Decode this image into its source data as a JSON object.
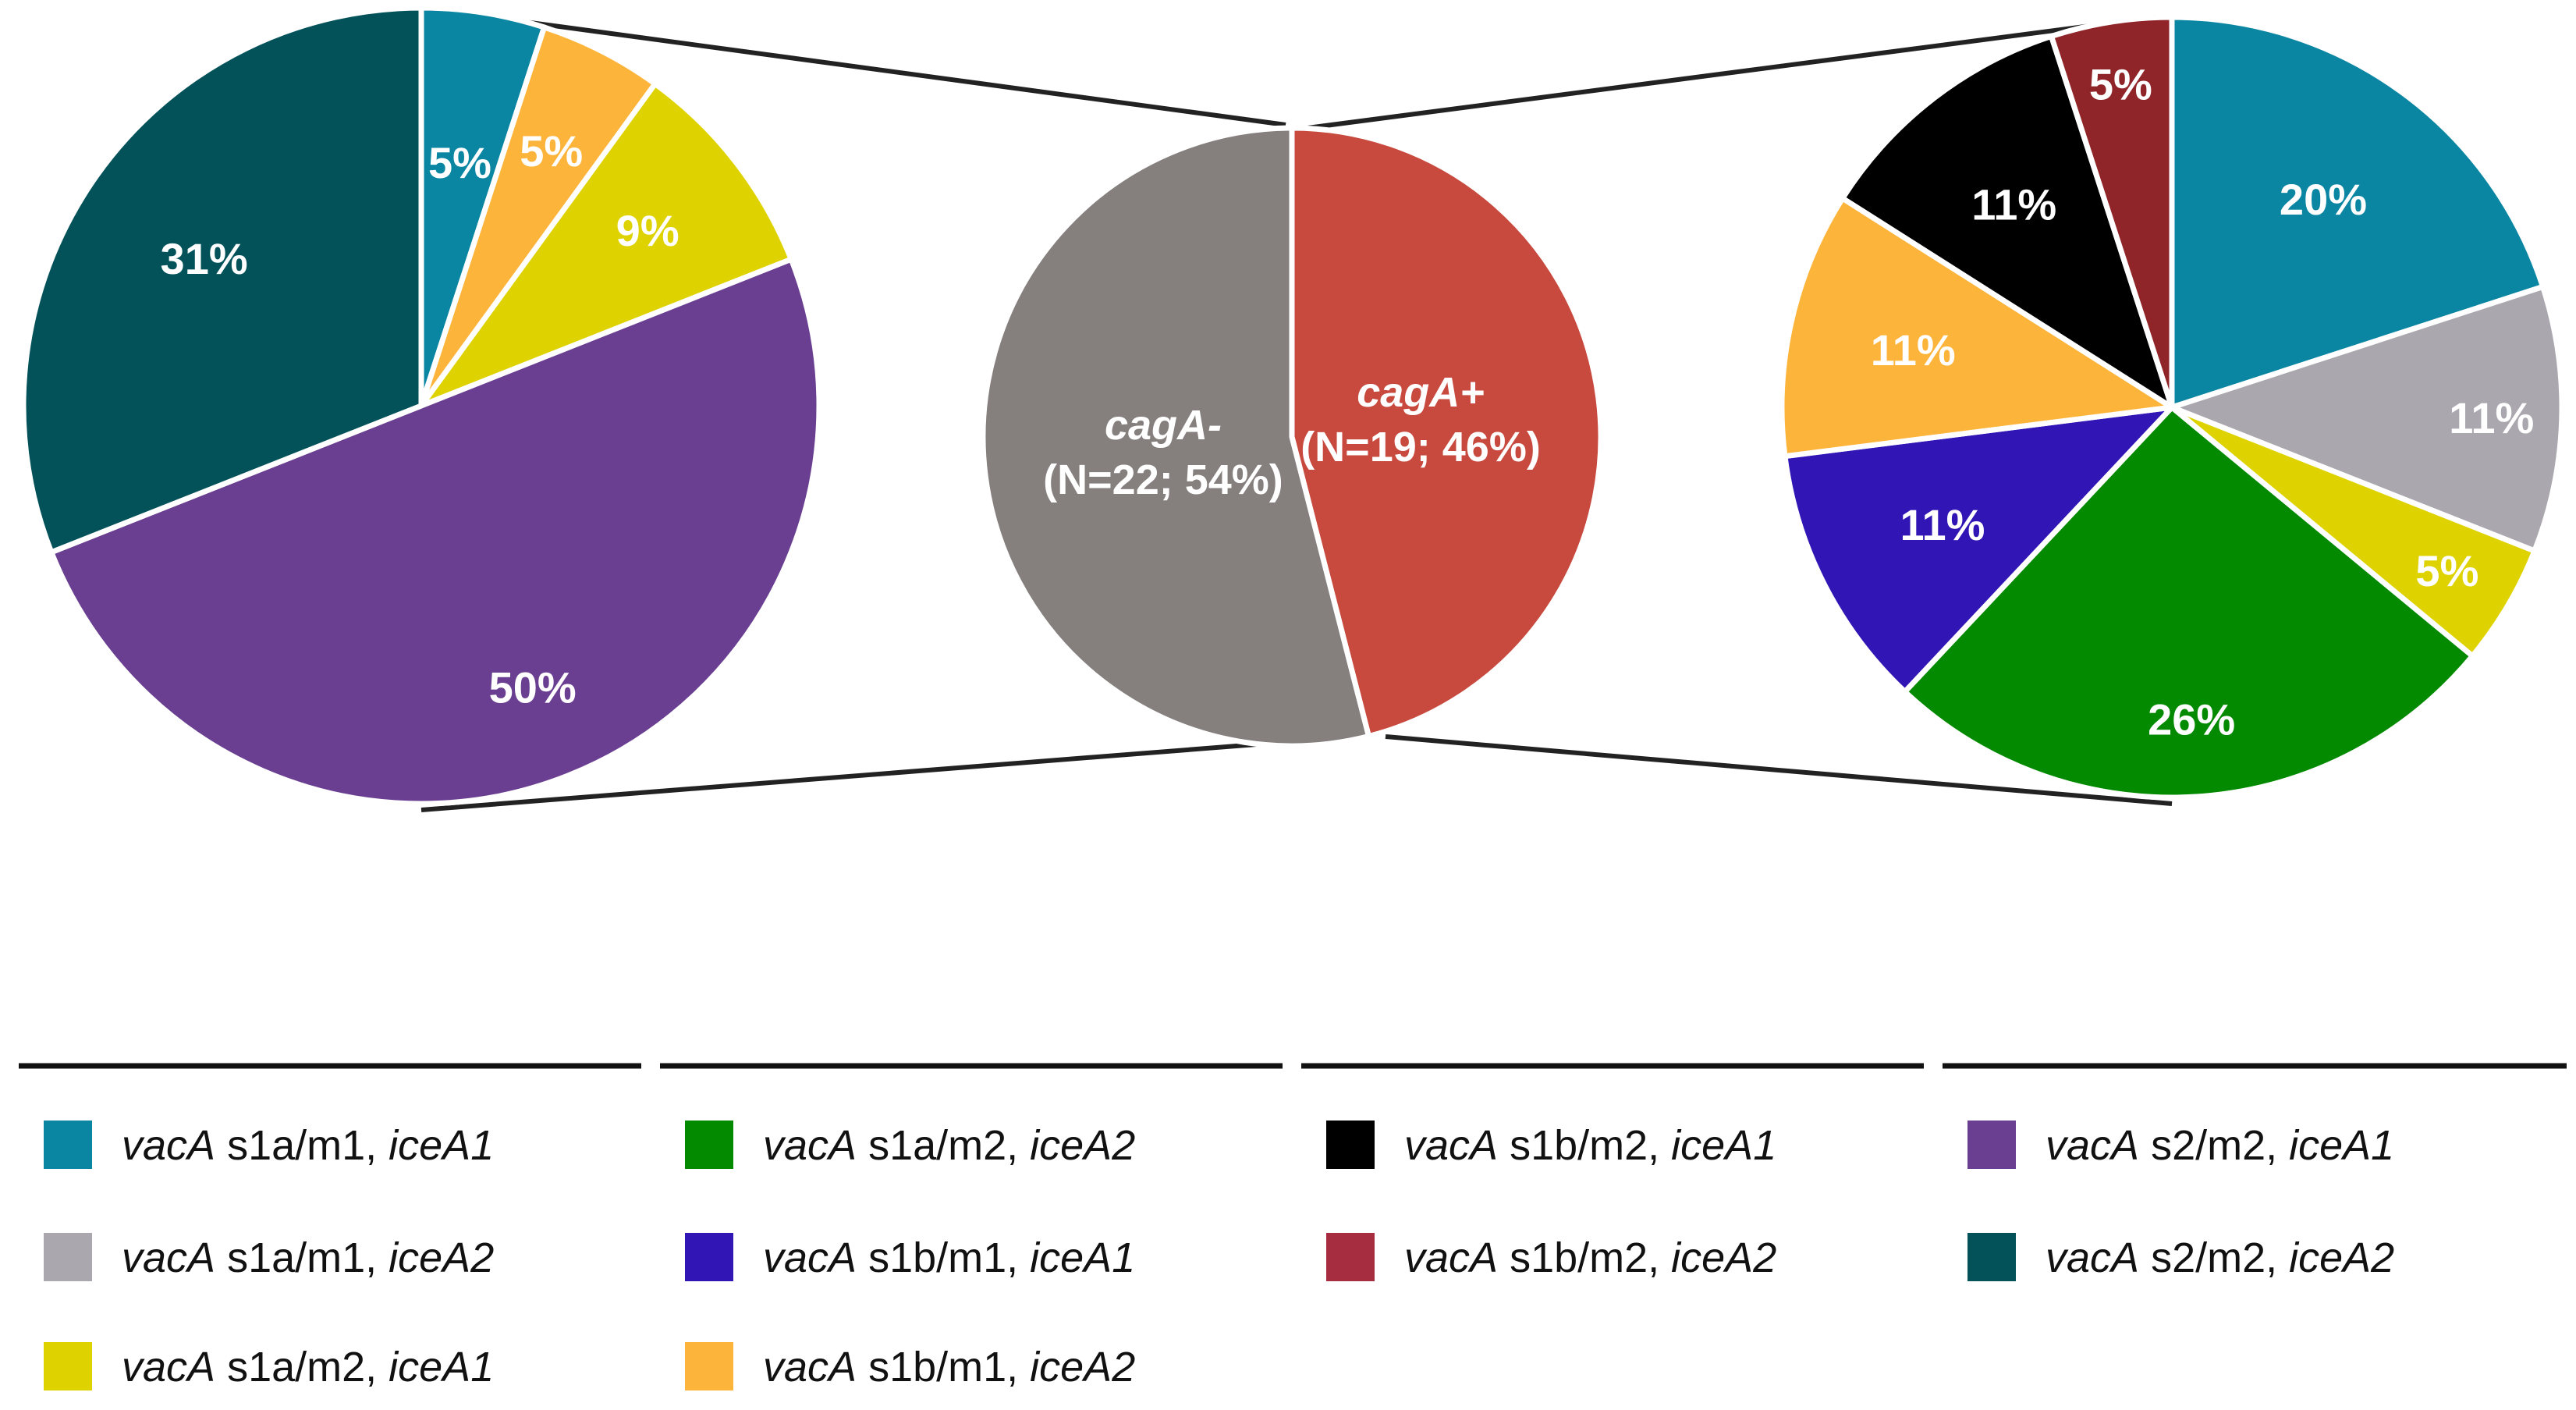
{
  "chart_data": [
    {
      "type": "pie",
      "name": "cagA-negative breakdown",
      "slices": [
        {
          "label": "vacA s1a/m1, iceA1",
          "value": 5,
          "text": "5%",
          "color": "#0a86a3"
        },
        {
          "label": "vacA s1b/m1, iceA2",
          "value": 5,
          "text": "5%",
          "color": "#fdb43a"
        },
        {
          "label": "vacA s1a/m2, iceA1",
          "value": 9,
          "text": "9%",
          "color": "#ded300"
        },
        {
          "label": "vacA s2/m2, iceA1",
          "value": 50,
          "text": "50%",
          "color": "#6a3f91"
        },
        {
          "label": "vacA s2/m2, iceA2",
          "value": 31,
          "text": "31%",
          "color": "#03525a"
        }
      ]
    },
    {
      "type": "pie",
      "name": "cagA status",
      "slices": [
        {
          "label": "cagA+",
          "value": 46,
          "line1": "cagA+",
          "line2": "(N=19; 46%)",
          "color": "#c84a3e"
        },
        {
          "label": "cagA-",
          "value": 54,
          "line1": "cagA-",
          "line2": "(N=22; 54%)",
          "color": "#857f7e"
        }
      ]
    },
    {
      "type": "pie",
      "name": "cagA-positive breakdown",
      "slices": [
        {
          "label": "vacA s1a/m1, iceA1",
          "value": 20,
          "text": "20%",
          "color": "#0a86a3"
        },
        {
          "label": "vacA s1a/m1, iceA2",
          "value": 11,
          "text": "11%",
          "color": "#aaa7ae"
        },
        {
          "label": "vacA s1a/m2, iceA1",
          "value": 5,
          "text": "5%",
          "color": "#ded300"
        },
        {
          "label": "vacA s1a/m2, iceA2",
          "value": 26,
          "text": "26%",
          "color": "#038a00"
        },
        {
          "label": "vacA s1b/m1, iceA1",
          "value": 11,
          "text": "11%",
          "color": "#3115b5"
        },
        {
          "label": "vacA s1b/m1, iceA2",
          "value": 11,
          "text": "11%",
          "color": "#fdb43a"
        },
        {
          "label": "vacA s1b/m2, iceA1",
          "value": 11,
          "text": "11%",
          "color": "#000000"
        },
        {
          "label": "vacA s1b/m2, iceA2",
          "value": 5,
          "text": "5%",
          "color": "#8f2528"
        }
      ]
    }
  ],
  "legend": [
    {
      "gene": "vacA",
      "genotype": " s1a/m1, ",
      "allele": "iceA1",
      "color": "#0a86a3"
    },
    {
      "gene": "vacA",
      "genotype": " s1a/m1, ",
      "allele": "iceA2",
      "color": "#aaa7ae"
    },
    {
      "gene": "vacA",
      "genotype": " s1a/m2, ",
      "allele": "iceA1",
      "color": "#ded300"
    },
    {
      "gene": "vacA",
      "genotype": " s1a/m2, ",
      "allele": "iceA2",
      "color": "#038a00"
    },
    {
      "gene": "vacA",
      "genotype": " s1b/m1, ",
      "allele": "iceA1",
      "color": "#3115b5"
    },
    {
      "gene": "vacA",
      "genotype": " s1b/m1, ",
      "allele": "iceA2",
      "color": "#fdb43a"
    },
    {
      "gene": "vacA",
      "genotype": " s1b/m2, ",
      "allele": "iceA1",
      "color": "#000000"
    },
    {
      "gene": "vacA",
      "genotype": " s1b/m2, ",
      "allele": "iceA2",
      "color": "#a62c3f"
    },
    {
      "gene": "vacA",
      "genotype": " s2/m2, ",
      "allele": "iceA1",
      "color": "#6a3f91"
    },
    {
      "gene": "vacA",
      "genotype": " s2/m2, ",
      "allele": "iceA2",
      "color": "#03525a"
    }
  ]
}
